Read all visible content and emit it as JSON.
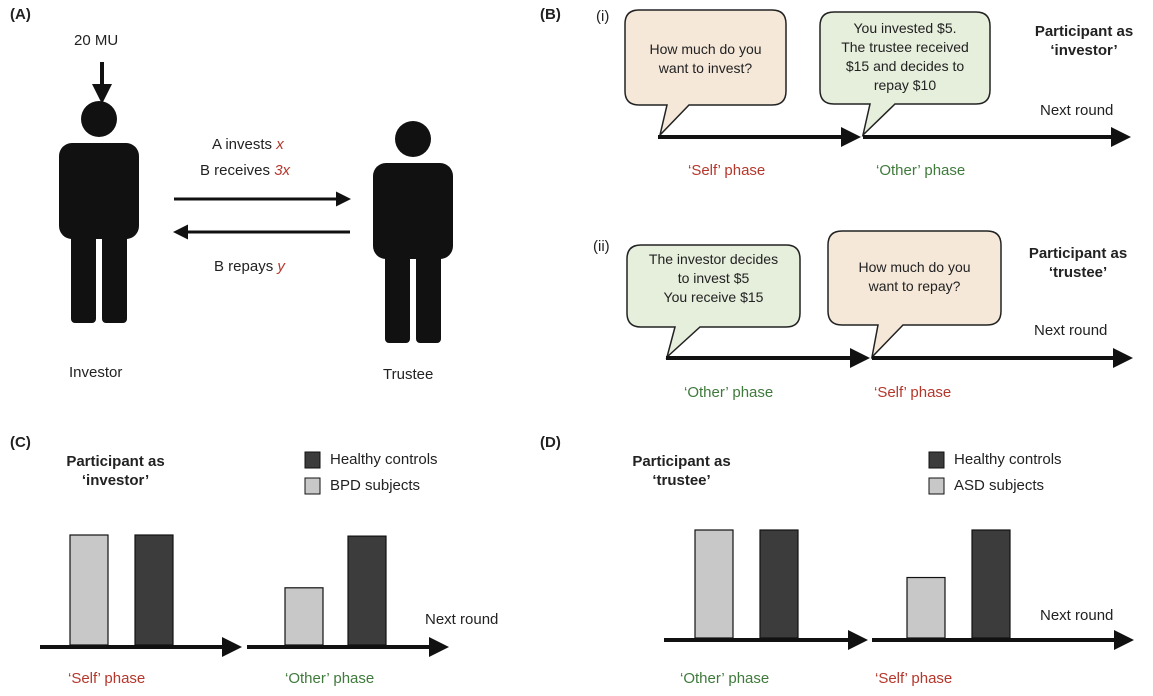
{
  "colors": {
    "red": "#b5372c",
    "green": "#3f7a3c",
    "self_bubble": "#f5e8d9",
    "other_bubble": "#e6eedc",
    "controls_bar": "#3c3c3c",
    "patient_bar": "#c8c8c8"
  },
  "panelA": {
    "label": "(A)",
    "endowment": "20 MU",
    "invests_prefix": "A invests ",
    "invests_var": "x",
    "receives_prefix": "B receives ",
    "receives_var": "3x",
    "repays_prefix": "B repays ",
    "repays_var": "y",
    "investor_label": "Investor",
    "trustee_label": "Trustee",
    "icons": [
      "person-icon",
      "person-icon"
    ]
  },
  "panelB": {
    "label": "(B)",
    "i": {
      "label": "(i)",
      "role_line1": "Participant as",
      "role_line2": "‘investor’",
      "bubble_self": [
        "How much do you",
        "want to invest?"
      ],
      "bubble_other": [
        "You invested $5.",
        "The trustee received",
        "$15 and decides to",
        "repay $10"
      ],
      "phase_first": "‘Self’ phase",
      "phase_second": "‘Other’ phase",
      "next": "Next round"
    },
    "ii": {
      "label": "(ii)",
      "role_line1": "Participant as",
      "role_line2": "‘trustee’",
      "bubble_other": [
        "The investor decides",
        "to invest $5",
        "You receive $15"
      ],
      "bubble_self": [
        "How much do you",
        "want to repay?"
      ],
      "phase_first": "‘Other’ phase",
      "phase_second": "‘Self’ phase",
      "next": "Next round"
    }
  },
  "panelC": {
    "label": "(C)",
    "role_line1": "Participant as",
    "role_line2": "‘investor’",
    "legend_dark": "Healthy controls",
    "legend_light": "BPD subjects",
    "phase_first": "‘Self’ phase",
    "phase_second": "‘Other’ phase",
    "next": "Next round"
  },
  "panelD": {
    "label": "(D)",
    "role_line1": "Participant as",
    "role_line2": "‘trustee’",
    "legend_dark": "Healthy controls",
    "legend_light": "ASD subjects",
    "phase_first": "‘Other’ phase",
    "phase_second": "‘Self’ phase",
    "next": "Next round"
  },
  "chart_data": [
    {
      "type": "bar",
      "panel": "C",
      "categories": [
        "‘Self’ phase",
        "‘Other’ phase"
      ],
      "series": [
        {
          "name": "BPD subjects",
          "values": [
            1.0,
            0.52
          ]
        },
        {
          "name": "Healthy controls",
          "values": [
            1.0,
            0.99
          ]
        }
      ],
      "note": "schematic bars, no axis values shown"
    },
    {
      "type": "bar",
      "panel": "D",
      "categories": [
        "‘Other’ phase",
        "‘Self’ phase"
      ],
      "series": [
        {
          "name": "ASD subjects",
          "values": [
            1.0,
            0.56
          ]
        },
        {
          "name": "Healthy controls",
          "values": [
            1.0,
            1.0
          ]
        }
      ],
      "note": "schematic bars, no axis values shown"
    }
  ]
}
